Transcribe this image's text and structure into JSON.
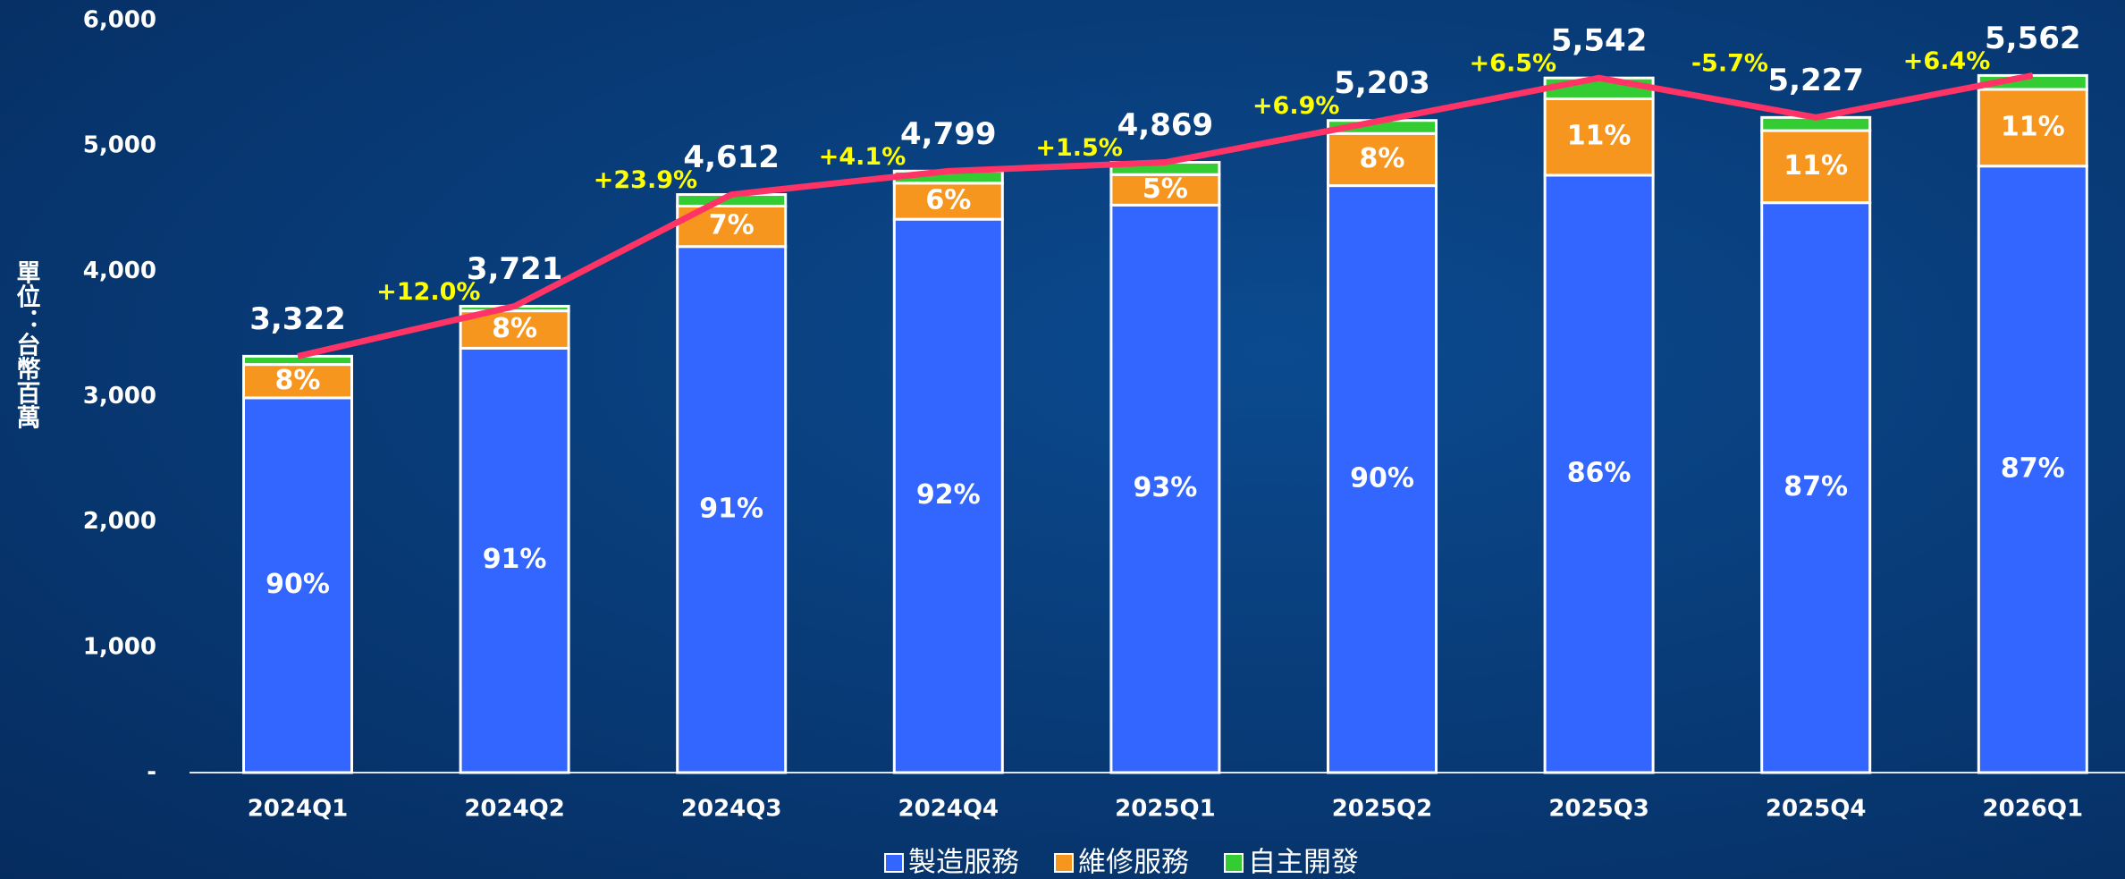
{
  "chart_data": {
    "type": "stacked_bar_line",
    "y_label": "單位：台幣百萬",
    "categories": [
      "2024Q1",
      "2024Q2",
      "2024Q3",
      "2024Q4",
      "2025Q1",
      "2025Q2",
      "2025Q3",
      "2025Q4",
      "2026Q1"
    ],
    "series": [
      {
        "name": "製造服務",
        "color": "#3366ff",
        "values": [
          2990,
          3386,
          4197,
          4415,
          4528,
          4683,
          4766,
          4547,
          4839
        ],
        "share_labels": [
          "90%",
          "91%",
          "91%",
          "92%",
          "93%",
          "90%",
          "86%",
          "87%",
          "87%"
        ]
      },
      {
        "name": "維修服務",
        "color": "#f7961e",
        "values": [
          266,
          298,
          323,
          288,
          243,
          416,
          610,
          575,
          612
        ],
        "share_labels": [
          "8%",
          "8%",
          "7%",
          "6%",
          "5%",
          "8%",
          "11%",
          "11%",
          "11%"
        ]
      },
      {
        "name": "自主開發",
        "color": "#33cc33",
        "values": [
          66,
          37,
          92,
          96,
          98,
          104,
          166,
          105,
          111
        ]
      },
      {
        "type": "line",
        "color": "#ff3366",
        "values": [
          3322,
          3721,
          4612,
          4799,
          4869,
          5203,
          5542,
          5227,
          5562
        ],
        "value_labels": [
          "3,322",
          "3,721",
          "4,612",
          "4,799",
          "4,869",
          "5,203",
          "5,542",
          "5,227",
          "5,562"
        ]
      }
    ],
    "growth_labels": [
      "+12.0%",
      "+23.9%",
      "+4.1%",
      "+1.5%",
      "+6.9%",
      "+6.5%",
      "-5.7%",
      "+6.4%"
    ],
    "ylim": [
      0,
      6000
    ],
    "yticks": [
      {
        "value": 0,
        "label": "-"
      },
      {
        "value": 1000,
        "label": "1,000"
      },
      {
        "value": 2000,
        "label": "2,000"
      },
      {
        "value": 3000,
        "label": "3,000"
      },
      {
        "value": 4000,
        "label": "4,000"
      },
      {
        "value": 5000,
        "label": "5,000"
      },
      {
        "value": 6000,
        "label": "6,000"
      }
    ],
    "legend": "bottom"
  }
}
